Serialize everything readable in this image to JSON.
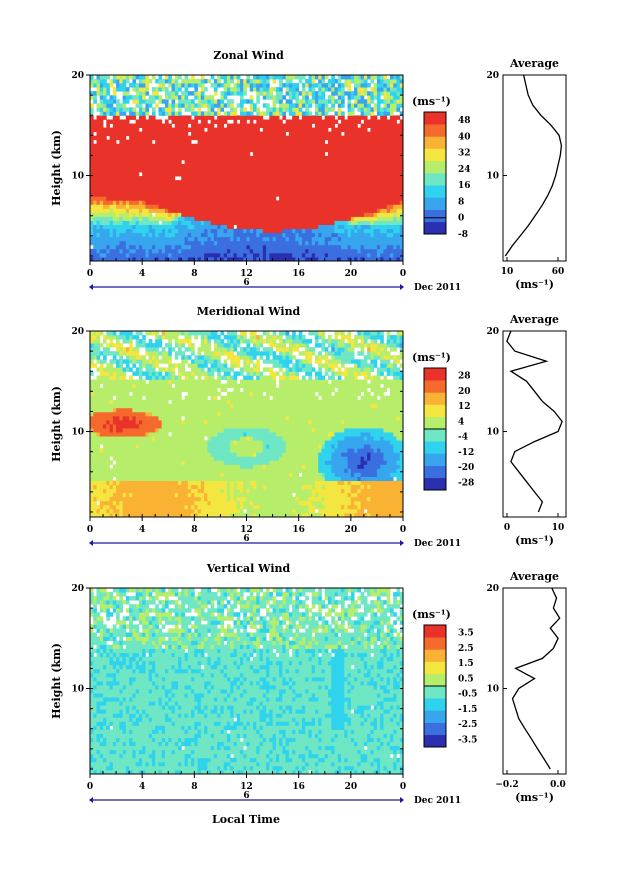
{
  "figure": {
    "x_axis_label": "Local Time",
    "date_label": "Dec 2011",
    "date_marker": "6",
    "x_ticks": [
      "0",
      "4",
      "8",
      "12",
      "16",
      "20",
      "0"
    ],
    "unit": "(ms⁻¹)",
    "height_label": "Height (km)",
    "height_ticks": [
      "20",
      "10"
    ]
  },
  "chart_data": [
    {
      "type": "heatmap",
      "title": "Zonal Wind",
      "xlabel": "",
      "ylabel": "Height (km)",
      "xlim": [
        0,
        24
      ],
      "ylim": [
        1.5,
        20
      ],
      "colorbar": {
        "unit": "(ms⁻¹)",
        "ticks": [
          48,
          40,
          32,
          24,
          16,
          8,
          0,
          -8
        ],
        "levels": [
          -8,
          52
        ],
        "colors": [
          "#2a2fb0",
          "#3b6fe0",
          "#37a6ee",
          "#2fd3ee",
          "#6fe6c4",
          "#b6ee6b",
          "#f3e640",
          "#f9b233",
          "#f56a2c",
          "#e8322a"
        ]
      },
      "profile": {
        "title": "Average",
        "xlabel": "(ms⁻¹)",
        "x_ticks": [
          "10",
          "60"
        ],
        "xlim": [
          10,
          65
        ],
        "heights": [
          2,
          3,
          4,
          5,
          6,
          7,
          8,
          9,
          10,
          11,
          12,
          13,
          14,
          15,
          16,
          17,
          18,
          19,
          20
        ],
        "values": [
          12,
          18,
          25,
          32,
          38,
          44,
          49,
          53,
          56,
          58,
          60,
          61,
          59,
          52,
          43,
          36,
          32,
          30,
          28
        ]
      }
    },
    {
      "type": "heatmap",
      "title": "Meridional Wind",
      "xlabel": "",
      "ylabel": "Height (km)",
      "xlim": [
        0,
        24
      ],
      "ylim": [
        1.5,
        20
      ],
      "colorbar": {
        "unit": "(ms⁻¹)",
        "ticks": [
          28,
          20,
          12,
          4,
          -4,
          -12,
          -20,
          -28
        ],
        "levels": [
          -32,
          32
        ],
        "colors": [
          "#2a2fb0",
          "#3b6fe0",
          "#37a6ee",
          "#2fd3ee",
          "#6fe6c4",
          "#b6ee6b",
          "#f3e640",
          "#f9b233",
          "#f56a2c",
          "#e8322a"
        ]
      },
      "profile": {
        "title": "Average",
        "xlabel": "(ms⁻¹)",
        "x_ticks": [
          "0",
          "10"
        ],
        "xlim": [
          -5,
          11
        ],
        "heights": [
          2,
          3,
          4,
          5,
          6,
          7,
          8,
          9,
          10,
          11,
          12,
          13,
          14,
          15,
          16,
          17,
          18,
          19,
          20
        ],
        "values": [
          4,
          5,
          3,
          1,
          -1,
          -3,
          -2,
          3,
          9,
          10,
          8,
          5,
          3,
          1,
          -3,
          6,
          -2,
          -4,
          -3
        ]
      }
    },
    {
      "type": "heatmap",
      "title": "Vertical Wind",
      "xlabel": "Local Time",
      "ylabel": "Height (km)",
      "xlim": [
        0,
        24
      ],
      "ylim": [
        1.5,
        20
      ],
      "colorbar": {
        "unit": "(ms⁻¹)",
        "ticks": [
          3.5,
          2.5,
          1.5,
          0.5,
          -0.5,
          -1.5,
          -2.5,
          -3.5
        ],
        "levels": [
          -4,
          4
        ],
        "colors": [
          "#2a2fb0",
          "#3b6fe0",
          "#37a6ee",
          "#2fd3ee",
          "#6fe6c4",
          "#b6ee6b",
          "#f3e640",
          "#f9b233",
          "#f56a2c",
          "#e8322a"
        ]
      },
      "profile": {
        "title": "Average",
        "xlabel": "(ms⁻¹)",
        "x_ticks": [
          "−0.2",
          "0.0"
        ],
        "xlim": [
          -0.3,
          0.1
        ],
        "heights": [
          2,
          3,
          4,
          5,
          6,
          7,
          8,
          9,
          10,
          11,
          12,
          13,
          14,
          15,
          16,
          17,
          18,
          19,
          20
        ],
        "values": [
          0.0,
          -0.04,
          -0.08,
          -0.12,
          -0.16,
          -0.2,
          -0.22,
          -0.24,
          -0.2,
          -0.1,
          -0.22,
          -0.05,
          0.02,
          0.05,
          0.0,
          0.06,
          0.02,
          0.04,
          0.01
        ]
      }
    }
  ]
}
